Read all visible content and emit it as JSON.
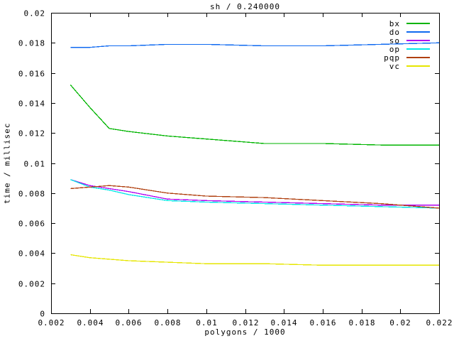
{
  "chart_data": {
    "type": "line",
    "title": "sh / 0.240000",
    "xlabel": "polygons / 1000",
    "ylabel": "time / millisec",
    "xlim": [
      0.002,
      0.022
    ],
    "ylim": [
      0,
      0.02
    ],
    "x_ticks": [
      0.002,
      0.004,
      0.006,
      0.008,
      0.01,
      0.012,
      0.014,
      0.016,
      0.018,
      0.02,
      0.022
    ],
    "y_ticks": [
      0,
      0.002,
      0.004,
      0.006,
      0.008,
      0.01,
      0.012,
      0.014,
      0.016,
      0.018,
      0.02
    ],
    "grid": false,
    "legend_position": "top-right-inside",
    "background_color": "#ffffff",
    "border_color": "#000000",
    "x": [
      0.003,
      0.004,
      0.005,
      0.006,
      0.008,
      0.01,
      0.013,
      0.016,
      0.019,
      0.022
    ],
    "series": [
      {
        "name": "bx",
        "color": "#00b400",
        "values": [
          0.0152,
          0.0137,
          0.0123,
          0.0121,
          0.0118,
          0.0116,
          0.0113,
          0.0113,
          0.0112,
          0.0112
        ]
      },
      {
        "name": "do",
        "color": "#0f6af0",
        "values": [
          0.0177,
          0.0177,
          0.0178,
          0.0178,
          0.0179,
          0.0179,
          0.0178,
          0.0178,
          0.0179,
          0.018
        ]
      },
      {
        "name": "so",
        "color": "#b000f0",
        "values": [
          0.0089,
          0.0085,
          0.0083,
          0.0081,
          0.0076,
          0.0075,
          0.0074,
          0.0073,
          0.0072,
          0.0072
        ]
      },
      {
        "name": "op",
        "color": "#00e6e6",
        "values": [
          0.0089,
          0.0084,
          0.0082,
          0.0079,
          0.0075,
          0.0074,
          0.0073,
          0.0072,
          0.0071,
          0.007
        ]
      },
      {
        "name": "pqp",
        "color": "#b04010",
        "values": [
          0.0083,
          0.0084,
          0.0085,
          0.0084,
          0.008,
          0.0078,
          0.0077,
          0.0075,
          0.0073,
          0.007
        ]
      },
      {
        "name": "vc",
        "color": "#e6e600",
        "values": [
          0.0039,
          0.0037,
          0.0036,
          0.0035,
          0.0034,
          0.0033,
          0.0033,
          0.0032,
          0.0032,
          0.0032
        ]
      }
    ]
  }
}
